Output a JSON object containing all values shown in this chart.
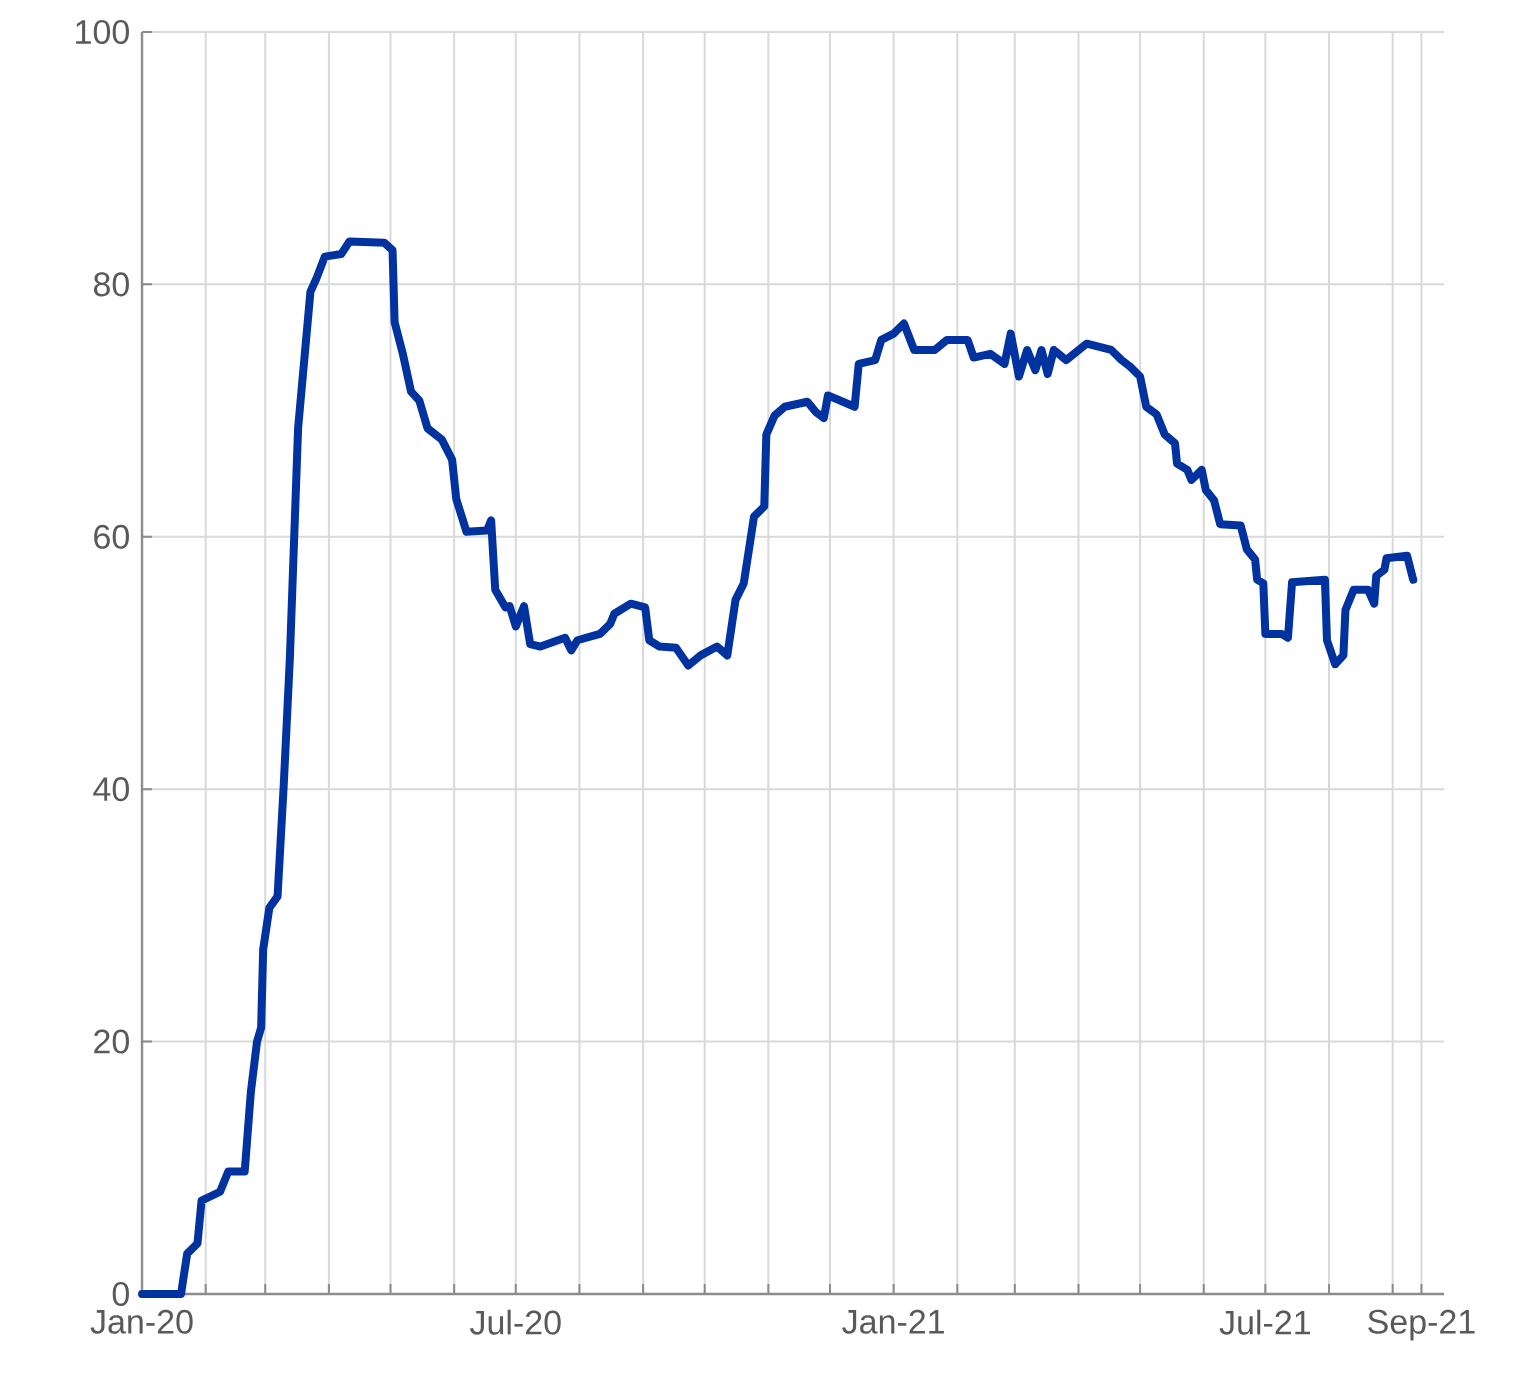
{
  "chart_data": {
    "type": "line",
    "xlim": [
      "2020-01-01",
      "2021-09-26"
    ],
    "ylim": [
      0,
      100
    ],
    "yticks": [
      0,
      20,
      40,
      60,
      80,
      100
    ],
    "xticks": [
      {
        "value": "2020-01-01",
        "label": "Jan-20"
      },
      {
        "value": "2020-02-01",
        "label": null
      },
      {
        "value": "2020-03-01",
        "label": null
      },
      {
        "value": "2020-04-01",
        "label": null
      },
      {
        "value": "2020-05-01",
        "label": null
      },
      {
        "value": "2020-06-01",
        "label": null
      },
      {
        "value": "2020-07-01",
        "label": "Jul-20"
      },
      {
        "value": "2020-08-01",
        "label": null
      },
      {
        "value": "2020-09-01",
        "label": null
      },
      {
        "value": "2020-10-01",
        "label": null
      },
      {
        "value": "2020-11-01",
        "label": null
      },
      {
        "value": "2020-12-01",
        "label": null
      },
      {
        "value": "2021-01-01",
        "label": "Jan-21"
      },
      {
        "value": "2021-02-01",
        "label": null
      },
      {
        "value": "2021-03-01",
        "label": null
      },
      {
        "value": "2021-04-01",
        "label": null
      },
      {
        "value": "2021-05-01",
        "label": null
      },
      {
        "value": "2021-06-01",
        "label": null
      },
      {
        "value": "2021-07-01",
        "label": "Jul-21"
      },
      {
        "value": "2021-08-01",
        "label": null
      },
      {
        "value": "2021-09-01",
        "label": null
      },
      {
        "value": "2021-09-15",
        "label": "Sep-21"
      }
    ],
    "grid": true,
    "line_style": "solid",
    "series": [
      {
        "color": "#0033a0",
        "x": [
          "2020-01-01",
          "2020-01-20",
          "2020-01-23",
          "2020-01-28",
          "2020-01-30",
          "2020-02-08",
          "2020-02-12",
          "2020-02-20",
          "2020-02-23",
          "2020-02-26",
          "2020-02-28",
          "2020-02-29",
          "2020-03-03",
          "2020-03-07",
          "2020-03-10",
          "2020-03-13",
          "2020-03-17",
          "2020-03-23",
          "2020-03-26",
          "2020-03-30",
          "2020-04-07",
          "2020-04-11",
          "2020-04-28",
          "2020-05-02",
          "2020-05-03",
          "2020-05-07",
          "2020-05-11",
          "2020-05-15",
          "2020-05-19",
          "2020-05-26",
          "2020-05-31",
          "2020-06-02",
          "2020-06-07",
          "2020-06-17",
          "2020-06-19",
          "2020-06-21",
          "2020-06-26",
          "2020-06-28",
          "2020-07-01",
          "2020-07-05",
          "2020-07-08",
          "2020-07-13",
          "2020-07-25",
          "2020-07-28",
          "2020-07-31",
          "2020-08-11",
          "2020-08-16",
          "2020-08-18",
          "2020-08-26",
          "2020-09-02",
          "2020-09-04",
          "2020-09-09",
          "2020-09-17",
          "2020-09-23",
          "2020-09-29",
          "2020-10-07",
          "2020-10-12",
          "2020-10-16",
          "2020-10-20",
          "2020-10-25",
          "2020-10-30",
          "2020-10-31",
          "2020-11-04",
          "2020-11-09",
          "2020-11-20",
          "2020-11-24",
          "2020-11-28",
          "2020-11-30",
          "2020-12-13",
          "2020-12-15",
          "2020-12-23",
          "2020-12-26",
          "2021-01-01",
          "2021-01-06",
          "2021-01-11",
          "2021-01-21",
          "2021-01-27",
          "2021-02-06",
          "2021-02-09",
          "2021-02-17",
          "2021-02-24",
          "2021-02-27",
          "2021-03-03",
          "2021-03-07",
          "2021-03-11",
          "2021-03-14",
          "2021-03-17",
          "2021-03-20",
          "2021-03-26",
          "2021-04-05",
          "2021-04-17",
          "2021-04-22",
          "2021-04-26",
          "2021-05-01",
          "2021-05-04",
          "2021-05-09",
          "2021-05-13",
          "2021-05-18",
          "2021-05-19",
          "2021-05-24",
          "2021-05-26",
          "2021-05-31",
          "2021-06-02",
          "2021-06-06",
          "2021-06-09",
          "2021-06-19",
          "2021-06-22",
          "2021-06-26",
          "2021-06-27",
          "2021-06-30",
          "2021-07-01",
          "2021-07-09",
          "2021-07-12",
          "2021-07-14",
          "2021-07-30",
          "2021-07-31",
          "2021-08-04",
          "2021-08-08",
          "2021-08-09",
          "2021-08-13",
          "2021-08-20",
          "2021-08-23",
          "2021-08-24",
          "2021-08-28",
          "2021-08-29",
          "2021-09-08",
          "2021-09-11"
        ],
        "values": [
          0,
          0,
          3.2,
          4.0,
          7.4,
          8.1,
          9.7,
          9.7,
          16.0,
          20.0,
          21.1,
          27.3,
          30.6,
          31.5,
          40.3,
          50.4,
          68.6,
          79.4,
          80.5,
          82.2,
          82.4,
          83.4,
          83.3,
          82.7,
          77.0,
          74.5,
          71.5,
          70.8,
          68.6,
          67.7,
          66.1,
          63.0,
          60.4,
          60.5,
          61.3,
          55.8,
          54.4,
          54.5,
          52.9,
          54.5,
          51.5,
          51.3,
          52.0,
          51.0,
          51.8,
          52.3,
          53.1,
          53.9,
          54.7,
          54.4,
          51.8,
          51.3,
          51.2,
          49.8,
          50.6,
          51.3,
          50.6,
          55.0,
          56.3,
          61.6,
          62.4,
          68.1,
          69.6,
          70.3,
          70.7,
          69.9,
          69.4,
          71.2,
          70.3,
          73.7,
          74.0,
          75.6,
          76.1,
          76.9,
          74.8,
          74.8,
          75.6,
          75.6,
          74.2,
          74.5,
          73.7,
          76.1,
          72.7,
          74.8,
          73.2,
          74.8,
          72.9,
          74.8,
          74.0,
          75.3,
          74.8,
          74.0,
          73.5,
          72.7,
          70.3,
          69.7,
          68.1,
          67.4,
          65.8,
          65.3,
          64.5,
          65.3,
          63.7,
          62.9,
          61.0,
          60.9,
          59.0,
          58.2,
          56.6,
          56.3,
          52.3,
          52.3,
          52.0,
          56.4,
          56.6,
          51.8,
          49.9,
          50.6,
          54.2,
          55.8,
          55.8,
          54.7,
          56.9,
          57.4,
          58.3,
          58.5,
          56.6
        ]
      }
    ]
  }
}
